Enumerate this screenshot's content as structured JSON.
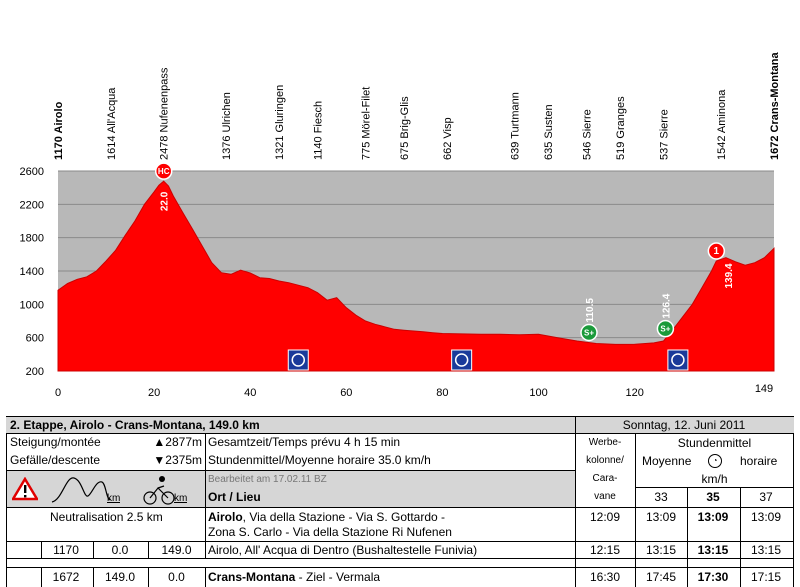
{
  "chart_data": {
    "type": "area",
    "title": "",
    "xlabel": "",
    "ylabel": "",
    "xlim": [
      0,
      149
    ],
    "ylim": [
      200,
      2600
    ],
    "x_ticks": [
      0,
      20,
      40,
      60,
      80,
      100,
      120
    ],
    "x_end_label": "149",
    "y_ticks": [
      200,
      600,
      1000,
      1400,
      1800,
      2200,
      2600
    ],
    "fill_color": "#ff0000",
    "plot_bg": "#b8b8b8",
    "profile": {
      "x": [
        0,
        2,
        4,
        6,
        8,
        10,
        12,
        14,
        16,
        18,
        20,
        21,
        22,
        23,
        24,
        26,
        28,
        30,
        32,
        34,
        36,
        38,
        40,
        42,
        44,
        46,
        48,
        50,
        52,
        54,
        56,
        58,
        60,
        62,
        64,
        66,
        68,
        70,
        72,
        74,
        76,
        78,
        80,
        84,
        88,
        92,
        96,
        100,
        102,
        104,
        108,
        110,
        112,
        116,
        120,
        124,
        126,
        128,
        130,
        132,
        134,
        136,
        137,
        139,
        141,
        143,
        145,
        147,
        149
      ],
      "y": [
        1170,
        1250,
        1300,
        1330,
        1400,
        1520,
        1650,
        1830,
        2000,
        2200,
        2350,
        2430,
        2478,
        2420,
        2300,
        2100,
        1900,
        1700,
        1500,
        1380,
        1360,
        1410,
        1376,
        1320,
        1310,
        1280,
        1260,
        1230,
        1200,
        1140,
        1050,
        1080,
        960,
        870,
        800,
        760,
        730,
        700,
        690,
        680,
        670,
        660,
        650,
        645,
        640,
        640,
        635,
        640,
        620,
        600,
        560,
        546,
        530,
        519,
        520,
        537,
        560,
        700,
        850,
        1000,
        1200,
        1400,
        1520,
        1560,
        1510,
        1470,
        1500,
        1560,
        1672
      ]
    },
    "places": [
      {
        "km": 0,
        "label": "1170 Airolo",
        "bold": true
      },
      {
        "km": 11,
        "label": "1614 All'Acqua",
        "bold": false
      },
      {
        "km": 22,
        "label": "2478  Nufenenpass",
        "bold": false
      },
      {
        "km": 35,
        "label": "1376 Ulrichen",
        "bold": false
      },
      {
        "km": 46,
        "label": "1321 Gluringen",
        "bold": false
      },
      {
        "km": 54,
        "label": "1140 Fiesch",
        "bold": false
      },
      {
        "km": 64,
        "label": "775 Mörel-Filet",
        "bold": false
      },
      {
        "km": 72,
        "label": "675 Brig-Glis",
        "bold": false
      },
      {
        "km": 81,
        "label": "662 Visp",
        "bold": false
      },
      {
        "km": 95,
        "label": "639 Turtmann",
        "bold": false
      },
      {
        "km": 102,
        "label": "635 Susten",
        "bold": false
      },
      {
        "km": 110,
        "label": "546 Sierre",
        "bold": false
      },
      {
        "km": 117,
        "label": "519 Granges",
        "bold": false
      },
      {
        "km": 126,
        "label": "537 Sierre",
        "bold": false
      },
      {
        "km": 138,
        "label": "1542 Aminona",
        "bold": false
      },
      {
        "km": 149,
        "label": "1672 Crans-Montana",
        "bold": true
      }
    ],
    "km_labels": [
      {
        "km": 22,
        "text": "22.0"
      },
      {
        "km": 110.5,
        "text": "110.5"
      },
      {
        "km": 126.4,
        "text": "126.4"
      },
      {
        "km": 139.4,
        "text": "139.4"
      }
    ],
    "markers": [
      {
        "km": 22,
        "type": "hc",
        "text": "HC",
        "color": "#ff0000"
      },
      {
        "km": 110.5,
        "type": "sprint",
        "text": "S+",
        "color": "#1a9a3a"
      },
      {
        "km": 126.4,
        "type": "sprint",
        "text": "S+",
        "color": "#1a9a3a"
      },
      {
        "km": 137,
        "type": "climb",
        "text": "1",
        "color": "#ff0000"
      }
    ],
    "bottom_icons": [
      {
        "km": 50,
        "name": "feed-zone-icon"
      },
      {
        "km": 84,
        "name": "service-icon"
      },
      {
        "km": 129,
        "name": "crossing-icon"
      }
    ]
  },
  "info": {
    "stage_title": "2. Etappe, Airolo - Crans-Montana, 149.0 km",
    "stage_date": "Sonntag, 12. Juni 2011",
    "climb_label": "Steigung/montée",
    "climb_value": "▲2877m",
    "descent_label": "Gefälle/descente",
    "descent_value": "▼2375m",
    "total_time": "Gesamtzeit/Temps prévu 4 h 15 min",
    "avg_speed": "Stundenmittel/Moyenne horaire 35.0 km/h",
    "edited": "Bearbeitet am 17.02.11 BZ",
    "col_place": "Ort / Lieu",
    "km_left": "km",
    "km_right": "km",
    "werbe": [
      "Werbe-",
      "kolonne/",
      "Cara-",
      "vane"
    ],
    "stundenmittel": "Stundenmittel",
    "moyenne": "Moyenne",
    "horaire": "horaire",
    "kmh": "km/h",
    "speeds": [
      "33",
      "35",
      "37"
    ],
    "rows": [
      {
        "alt": "",
        "km": "",
        "rem": "",
        "neutral": "Neutralisation 2.5 km",
        "place_bold": "Airolo",
        "place_line1": ", Via della Stazione - Via S. Gottardo -",
        "place_line2": "Zona S. Carlo - Via della Stazione Ri Nufenen",
        "cara": "12:09",
        "t33": "13:09",
        "t35": "13:09",
        "t37": "13:09"
      },
      {
        "alt": "1170",
        "km": "0.0",
        "rem": "149.0",
        "neutral": "",
        "place_bold": "",
        "place_line1": "Airolo, All' Acqua di Dentro (Bushaltestelle Funivia)",
        "place_line2": "",
        "cara": "12:15",
        "t33": "13:15",
        "t35": "13:15",
        "t37": "13:15"
      },
      {
        "alt": "1672",
        "km": "149.0",
        "rem": "0.0",
        "neutral": "",
        "place_bold": "Crans-Montana",
        "place_line1": " - Ziel - Vermala",
        "place_line2": "",
        "cara": "16:30",
        "t33": "17:45",
        "t35": "17:30",
        "t37": "17:15"
      }
    ]
  }
}
